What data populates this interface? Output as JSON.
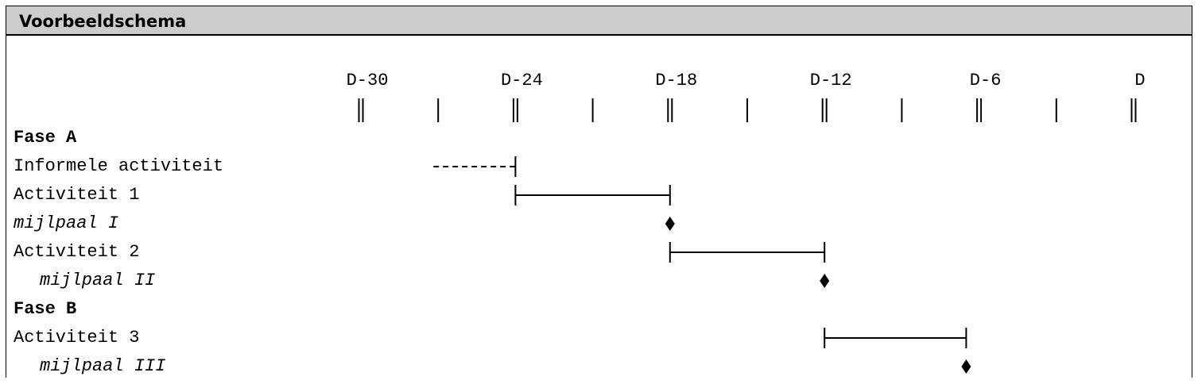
{
  "title": "Voorbeeldschema",
  "ticks": [
    {
      "label": "D-30",
      "days": -30,
      "kind": "major"
    },
    {
      "label": "",
      "days": -27,
      "kind": "minor"
    },
    {
      "label": "D-24",
      "days": -24,
      "kind": "major"
    },
    {
      "label": "",
      "days": -21,
      "kind": "minor"
    },
    {
      "label": "D-18",
      "days": -18,
      "kind": "major"
    },
    {
      "label": "",
      "days": -15,
      "kind": "minor"
    },
    {
      "label": "D-12",
      "days": -12,
      "kind": "major"
    },
    {
      "label": "",
      "days": -9,
      "kind": "minor"
    },
    {
      "label": "D-6",
      "days": -6,
      "kind": "major"
    },
    {
      "label": "",
      "days": -3,
      "kind": "minor"
    },
    {
      "label": "D",
      "days": 0,
      "kind": "major"
    }
  ],
  "rows": [
    {
      "label": "Fase A",
      "style": "phase"
    },
    {
      "label": "Informele activiteit",
      "style": "activity",
      "type": "informal",
      "start": -27,
      "end": -24
    },
    {
      "label": "Activiteit 1",
      "style": "activity",
      "type": "bar",
      "start": -24,
      "end": -18
    },
    {
      "label": "mijlpaal I",
      "style": "milestone",
      "type": "milestone",
      "at": -18
    },
    {
      "label": "Activiteit 2",
      "style": "activity",
      "type": "bar",
      "start": -18,
      "end": -12
    },
    {
      "label": "mijlpaal II",
      "style": "milestone-indent",
      "type": "milestone",
      "at": -12
    },
    {
      "label": "Fase B",
      "style": "phase"
    },
    {
      "label": "Activiteit 3",
      "style": "activity",
      "type": "bar",
      "start": -12,
      "end": -6.5
    },
    {
      "label": "mijlpaal III",
      "style": "milestone-indent",
      "type": "milestone",
      "at": -6.5
    }
  ]
}
